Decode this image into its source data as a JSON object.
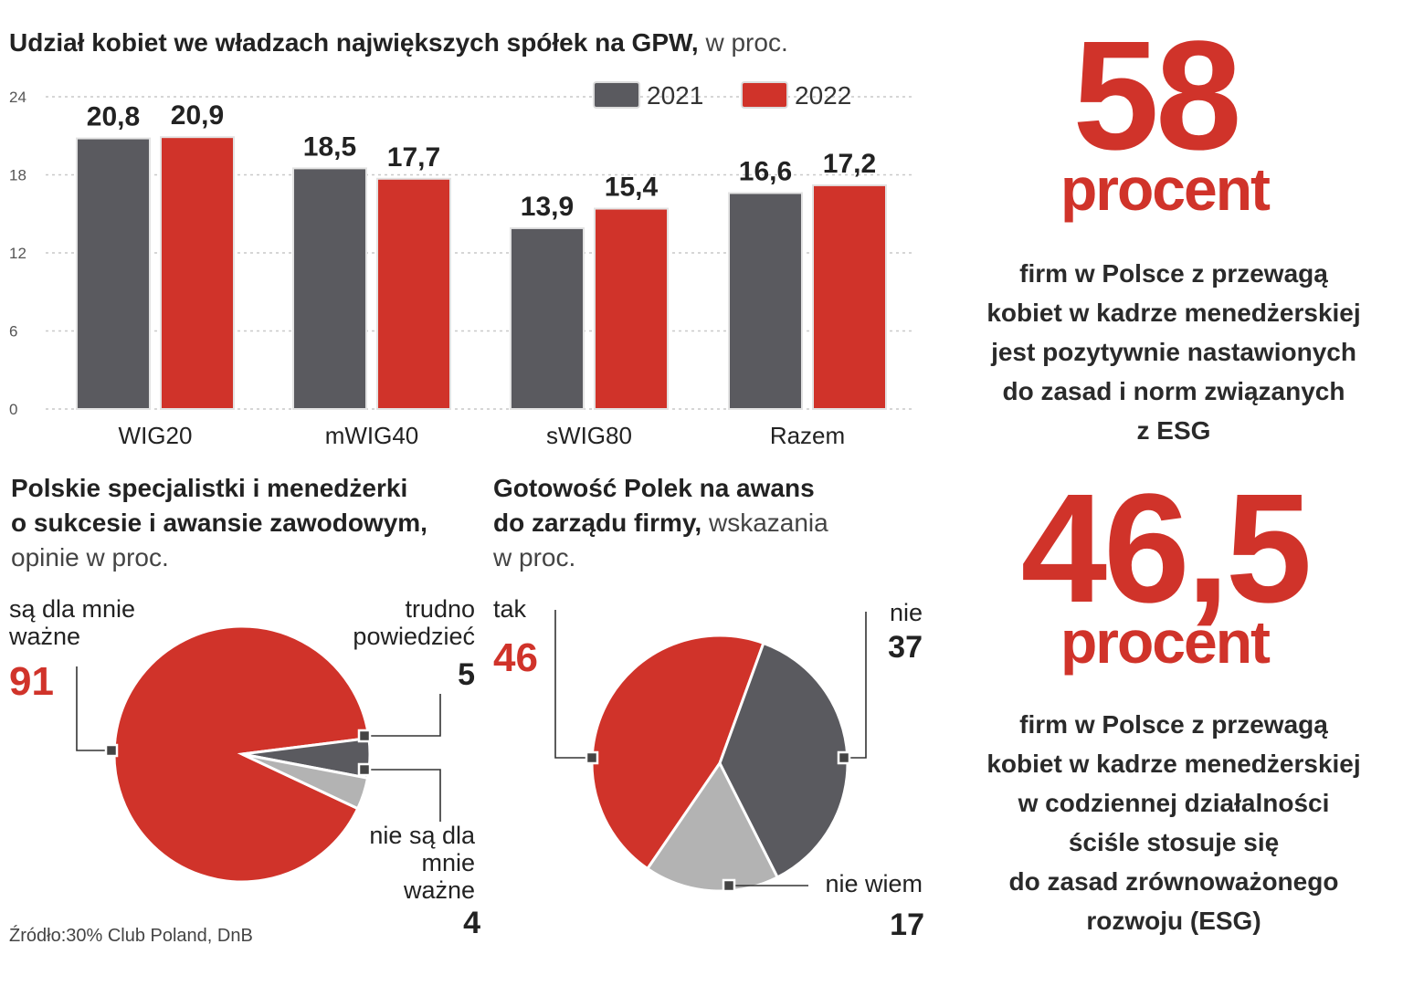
{
  "bar_title": {
    "bold": "Udział  kobiet we władzach największych spółek na GPW,",
    "thin": "w proc."
  },
  "pie1_title": {
    "line1": "Polskie specjalistki i menedżerki",
    "line2": "o sukcesie i awansie zawodowym,",
    "thin": "opinie w proc."
  },
  "pie2_title": {
    "line1": "Gotowość Polek na awans",
    "line2": "do zarządu firmy,",
    "thin_inline": "wskazania",
    "thin": "w proc."
  },
  "stat1": {
    "number": "58",
    "unit": "procent",
    "lines": [
      "firm w Polsce z przewagą",
      "kobiet w kadrze menedżerskiej",
      "jest pozytywnie nastawionych",
      "do zasad i norm związanych",
      "z ESG"
    ]
  },
  "stat2": {
    "number": "46,5",
    "unit": "procent",
    "lines": [
      "firm w Polsce z przewagą",
      "kobiet w kadrze menedżerskiej",
      "w codziennej działalności",
      "ściśle stosuje się",
      "do zasad zrównoważonego",
      "rozwoju (ESG)"
    ]
  },
  "source": "Źródło:30% Club Poland, DnB",
  "colors": {
    "red": "#d0332a",
    "dark": "#5a5a5f",
    "light": "#b3b3b3"
  },
  "chart_data": [
    {
      "type": "bar",
      "title": "Udział  kobiet we władzach największych spółek na GPW, w proc.",
      "categories": [
        "WIG20",
        "mWIG40",
        "sWIG80",
        "Razem"
      ],
      "series": [
        {
          "name": "2021",
          "values": [
            20.8,
            18.5,
            13.9,
            16.6
          ],
          "labels": [
            "20,8",
            "18,5",
            "13,9",
            "16,6"
          ]
        },
        {
          "name": "2022",
          "values": [
            20.9,
            17.7,
            15.4,
            17.2
          ],
          "labels": [
            "20,9",
            "17,7",
            "15,4",
            "17,2"
          ]
        }
      ],
      "yticks": [
        "24",
        "18",
        "12",
        "6",
        "0"
      ],
      "ylim": [
        0,
        24
      ],
      "legend": "top-right"
    },
    {
      "type": "pie",
      "title": "Polskie specjalistki i menedżerki o sukcesie i awansie zawodowym, opinie w proc.",
      "slices": [
        {
          "label": "są dla mnie ważne",
          "value": 91,
          "display": "91"
        },
        {
          "label": "trudno powiedzieć",
          "value": 5,
          "display": "5"
        },
        {
          "label": "nie są dla mnie ważne",
          "value": 4,
          "display": "4"
        }
      ]
    },
    {
      "type": "pie",
      "title": "Gotowość Polek na awans do zarządu firmy, wskazania w proc.",
      "slices": [
        {
          "label": "tak",
          "value": 46,
          "display": "46"
        },
        {
          "label": "nie",
          "value": 37,
          "display": "37"
        },
        {
          "label": "nie wiem",
          "value": 17,
          "display": "17"
        }
      ]
    }
  ]
}
